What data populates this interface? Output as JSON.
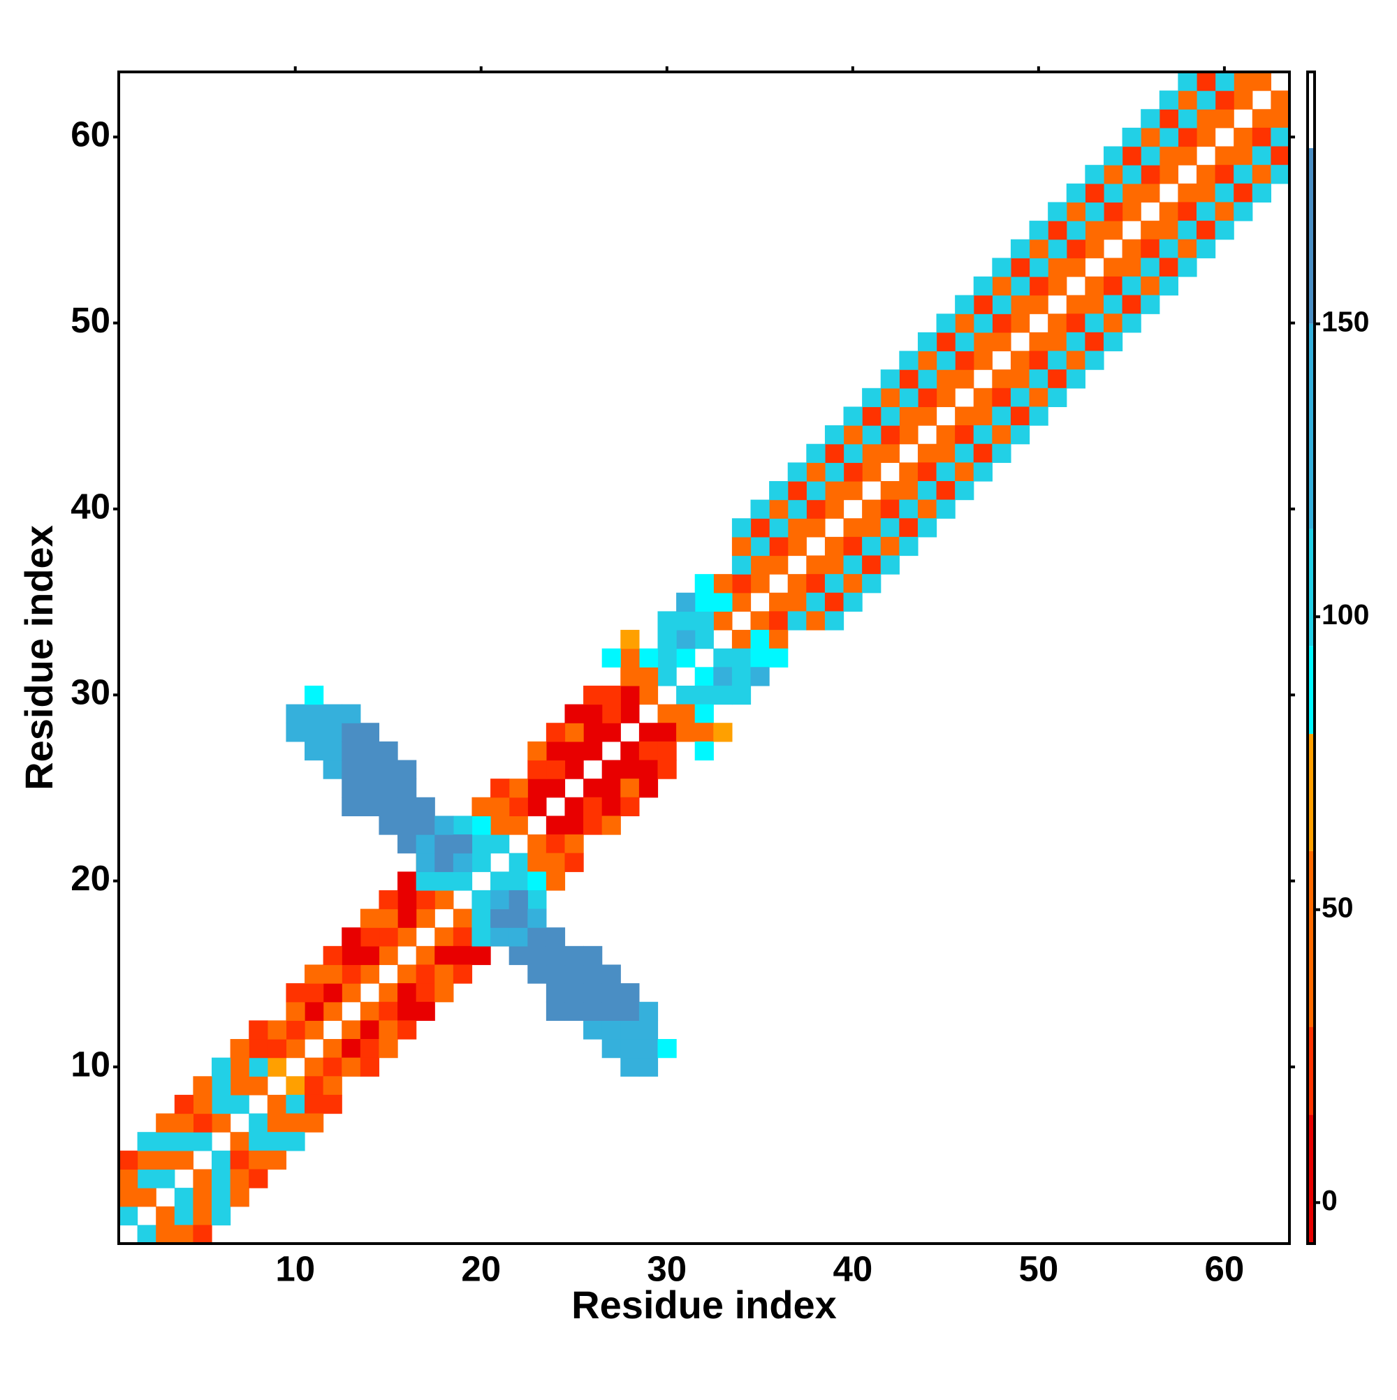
{
  "chart_data": {
    "type": "heatmap",
    "xlabel": "Residue index",
    "ylabel": "Residue index",
    "xlim": [
      0.5,
      63.5
    ],
    "ylim": [
      0.5,
      63.5
    ],
    "xticks": [
      10,
      20,
      30,
      40,
      50,
      60
    ],
    "yticks": [
      10,
      20,
      30,
      40,
      50,
      60
    ],
    "diagonals": [
      {
        "offset": 1,
        "values": [
          105,
          45,
          105,
          45,
          105,
          45,
          105,
          45,
          70,
          45,
          45,
          45,
          45,
          45,
          45,
          45,
          45,
          45,
          88,
          105,
          105,
          45,
          5,
          5,
          5,
          5,
          5,
          5,
          45,
          105,
          88,
          105,
          45,
          45,
          45,
          45,
          45,
          45,
          45,
          45,
          45,
          45,
          45,
          45,
          45,
          45,
          45,
          45,
          45,
          45,
          45,
          45,
          45,
          45,
          45,
          45,
          45,
          45,
          45,
          45,
          45,
          45
        ]
      },
      {
        "offset": 2,
        "values": [
          45,
          105,
          45,
          105,
          22,
          105,
          45,
          105,
          22,
          22,
          5,
          5,
          22,
          5,
          22,
          5,
          22,
          45,
          88,
          105,
          45,
          22,
          5,
          22,
          5,
          5,
          22,
          5,
          45,
          105,
          130,
          105,
          88,
          22,
          45,
          22,
          45,
          22,
          45,
          22,
          45,
          22,
          45,
          22,
          45,
          22,
          45,
          22,
          45,
          22,
          45,
          22,
          45,
          22,
          45,
          22,
          45,
          22,
          45,
          22,
          45
        ]
      },
      {
        "offset": 3,
        "values": [
          45,
          45,
          105,
          45,
          45,
          105,
          45,
          22,
          45,
          45,
          22,
          45,
          5,
          22,
          45,
          5,
          22,
          45,
          105,
          88,
          45,
          45,
          22,
          5,
          45,
          5,
          22,
          45,
          88,
          105,
          105,
          88,
          45,
          105,
          105,
          105,
          105,
          105,
          105,
          105,
          105,
          105,
          105,
          105,
          105,
          105,
          105,
          105,
          105,
          105,
          105,
          105,
          105,
          105,
          105,
          105,
          105,
          105,
          105,
          105
        ]
      },
      {
        "offset": 4,
        "values": [
          22,
          105,
          45,
          22,
          45,
          105,
          45,
          22,
          null,
          22,
          45,
          22,
          5,
          45,
          22,
          5,
          45,
          null,
          105,
          45,
          22,
          null,
          45,
          22,
          5,
          22,
          null,
          45,
          null,
          105,
          130,
          88,
          null,
          45,
          22,
          45,
          22,
          45,
          22,
          45,
          22,
          45,
          22,
          45,
          22,
          45,
          22,
          45,
          22,
          45,
          22,
          45,
          22,
          45,
          22,
          45,
          22,
          45,
          22
        ]
      },
      {
        "offset": 5,
        "values": [
          null,
          null,
          null,
          null,
          null,
          null,
          null,
          null,
          null,
          null,
          null,
          null,
          null,
          null,
          null,
          null,
          null,
          null,
          null,
          null,
          null,
          null,
          null,
          null,
          null,
          null,
          88,
          70,
          null,
          null,
          null,
          null,
          null,
          105,
          105,
          105,
          105,
          105,
          105,
          105,
          105,
          105,
          105,
          105,
          105,
          105,
          105,
          105,
          105,
          105,
          105,
          105,
          105,
          105,
          105,
          105,
          105,
          105
        ]
      }
    ],
    "cross": {
      "x": [
        10,
        10,
        11,
        11,
        11,
        11,
        12,
        12,
        12,
        12,
        13,
        13,
        13,
        13,
        13,
        13,
        14,
        14,
        14,
        14,
        14,
        15,
        15,
        15,
        15,
        15,
        16,
        16,
        16,
        16,
        16,
        17,
        17,
        17,
        17,
        17,
        18,
        18,
        18,
        18,
        19,
        19,
        19
      ],
      "y": [
        28,
        29,
        27,
        28,
        29,
        30,
        26,
        27,
        28,
        29,
        24,
        25,
        26,
        27,
        28,
        29,
        24,
        25,
        26,
        27,
        28,
        23,
        24,
        25,
        26,
        27,
        22,
        23,
        24,
        25,
        26,
        20,
        21,
        22,
        23,
        24,
        20,
        21,
        22,
        23,
        20,
        21,
        22
      ],
      "values": [
        130,
        130,
        130,
        130,
        130,
        88,
        130,
        130,
        130,
        130,
        165,
        165,
        165,
        165,
        165,
        130,
        165,
        165,
        165,
        165,
        165,
        165,
        165,
        165,
        165,
        165,
        165,
        165,
        165,
        165,
        165,
        105,
        130,
        130,
        165,
        165,
        105,
        165,
        165,
        130,
        105,
        130,
        165
      ]
    },
    "colorbar": {
      "lim": [
        -7,
        193
      ],
      "ticks": [
        0,
        50,
        100,
        150
      ],
      "bounds": [
        -7,
        15,
        30,
        60,
        80,
        95,
        115,
        150,
        180,
        193
      ],
      "colors": [
        "#e80000",
        "#ff3300",
        "#ff6a00",
        "#ffa000",
        "#00f8ff",
        "#22d0e6",
        "#35b0dc",
        "#4a8ec4",
        "#ffffff"
      ]
    }
  }
}
